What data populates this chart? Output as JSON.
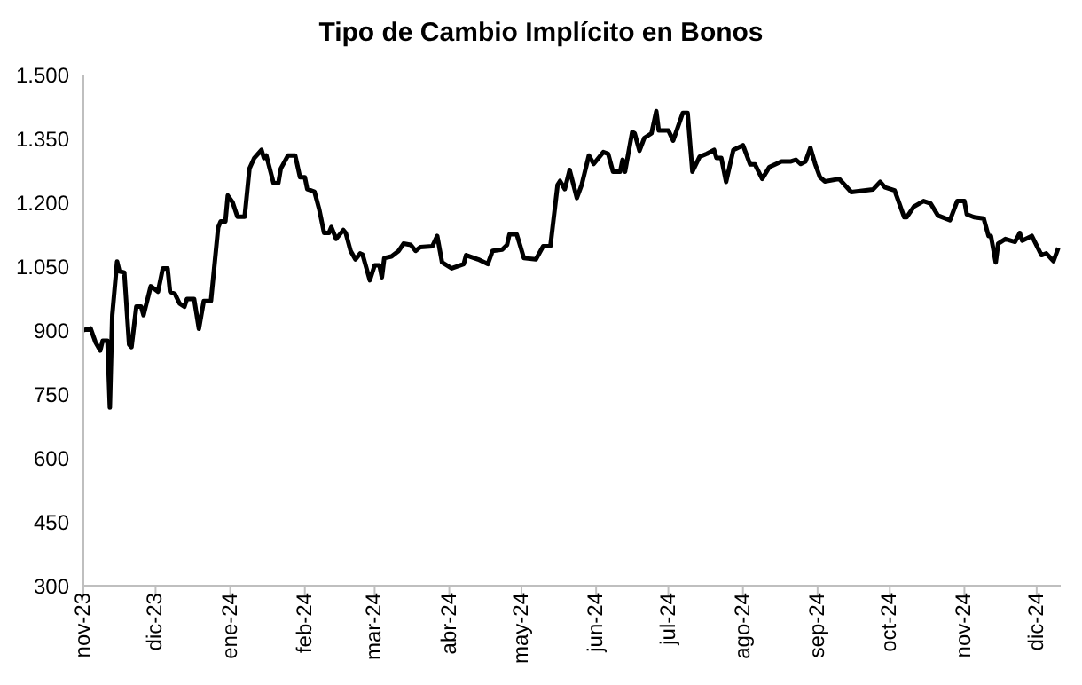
{
  "chart_data": {
    "type": "line",
    "title": "Tipo de Cambio Implícito en Bonos",
    "x": [
      "2023-11-01",
      "2023-11-04",
      "2023-11-06",
      "2023-11-08",
      "2023-11-09",
      "2023-11-11",
      "2023-11-12",
      "2023-11-13",
      "2023-11-15",
      "2023-11-16",
      "2023-11-18",
      "2023-11-20",
      "2023-11-21",
      "2023-11-23",
      "2023-11-25",
      "2023-11-26",
      "2023-11-29",
      "2023-12-02",
      "2023-12-04",
      "2023-12-06",
      "2023-12-07",
      "2023-12-09",
      "2023-12-11",
      "2023-12-13",
      "2023-12-14",
      "2023-12-17",
      "2023-12-19",
      "2023-12-21",
      "2023-12-24",
      "2023-12-27",
      "2023-12-28",
      "2023-12-30",
      "2023-12-31",
      "2024-01-02",
      "2024-01-04",
      "2024-01-07",
      "2024-01-09",
      "2024-01-11",
      "2024-01-14",
      "2024-01-15",
      "2024-01-16",
      "2024-01-19",
      "2024-01-21",
      "2024-01-22",
      "2024-01-25",
      "2024-01-28",
      "2024-01-30",
      "2024-02-01",
      "2024-02-02",
      "2024-02-05",
      "2024-02-07",
      "2024-02-09",
      "2024-02-11",
      "2024-02-12",
      "2024-02-14",
      "2024-02-17",
      "2024-02-18",
      "2024-02-20",
      "2024-02-22",
      "2024-02-24",
      "2024-02-25",
      "2024-02-28",
      "2024-03-01",
      "2024-03-03",
      "2024-03-04",
      "2024-03-05",
      "2024-03-08",
      "2024-03-11",
      "2024-03-13",
      "2024-03-16",
      "2024-03-18",
      "2024-03-20",
      "2024-03-25",
      "2024-03-27",
      "2024-03-29",
      "2024-04-02",
      "2024-04-07",
      "2024-04-08",
      "2024-04-13",
      "2024-04-17",
      "2024-04-19",
      "2024-04-23",
      "2024-04-25",
      "2024-04-26",
      "2024-04-29",
      "2024-04-30",
      "2024-05-02",
      "2024-05-07",
      "2024-05-10",
      "2024-05-13",
      "2024-05-16",
      "2024-05-17",
      "2024-05-19",
      "2024-05-21",
      "2024-05-24",
      "2024-05-26",
      "2024-05-29",
      "2024-05-31",
      "2024-06-04",
      "2024-06-06",
      "2024-06-08",
      "2024-06-11",
      "2024-06-12",
      "2024-06-13",
      "2024-06-16",
      "2024-06-17",
      "2024-06-19",
      "2024-06-21",
      "2024-06-24",
      "2024-06-26",
      "2024-06-27",
      "2024-07-01",
      "2024-07-03",
      "2024-07-07",
      "2024-07-09",
      "2024-07-11",
      "2024-07-14",
      "2024-07-17",
      "2024-07-20",
      "2024-07-21",
      "2024-07-23",
      "2024-07-25",
      "2024-07-28",
      "2024-08-01",
      "2024-08-04",
      "2024-08-06",
      "2024-08-09",
      "2024-08-12",
      "2024-08-17",
      "2024-08-21",
      "2024-08-23",
      "2024-08-25",
      "2024-08-27",
      "2024-08-29",
      "2024-08-31",
      "2024-09-02",
      "2024-09-04",
      "2024-09-10",
      "2024-09-15",
      "2024-09-21",
      "2024-09-24",
      "2024-09-27",
      "2024-09-29",
      "2024-10-03",
      "2024-10-07",
      "2024-10-08",
      "2024-10-11",
      "2024-10-15",
      "2024-10-18",
      "2024-10-21",
      "2024-10-26",
      "2024-10-29",
      "2024-11-01",
      "2024-11-02",
      "2024-11-05",
      "2024-11-09",
      "2024-11-11",
      "2024-11-12",
      "2024-11-14",
      "2024-11-15",
      "2024-11-18",
      "2024-11-22",
      "2024-11-24",
      "2024-11-25",
      "2024-11-29",
      "2024-12-03",
      "2024-12-05",
      "2024-12-08",
      "2024-12-10"
    ],
    "series": [
      {
        "color": "#000000",
        "values": [
          900,
          904,
          872,
          852,
          875,
          875,
          718,
          935,
          1061,
          1038,
          1035,
          866,
          860,
          955,
          955,
          935,
          1003,
          990,
          1045,
          1045,
          990,
          985,
          962,
          955,
          973,
          973,
          903,
          968,
          968,
          1141,
          1155,
          1155,
          1216,
          1200,
          1166,
          1166,
          1279,
          1304,
          1323,
          1304,
          1310,
          1245,
          1245,
          1279,
          1310,
          1310,
          1259,
          1259,
          1231,
          1225,
          1183,
          1128,
          1128,
          1142,
          1114,
          1135,
          1128,
          1086,
          1066,
          1080,
          1077,
          1017,
          1052,
          1052,
          1024,
          1069,
          1073,
          1086,
          1103,
          1100,
          1086,
          1095,
          1097,
          1121,
          1059,
          1045,
          1055,
          1076,
          1066,
          1055,
          1086,
          1089,
          1100,
          1125,
          1125,
          1107,
          1069,
          1066,
          1097,
          1097,
          1241,
          1250,
          1231,
          1276,
          1210,
          1241,
          1310,
          1290,
          1318,
          1314,
          1272,
          1272,
          1300,
          1272,
          1365,
          1362,
          1321,
          1351,
          1362,
          1414,
          1369,
          1369,
          1345,
          1410,
          1410,
          1272,
          1307,
          1314,
          1323,
          1304,
          1304,
          1248,
          1323,
          1334,
          1289,
          1289,
          1255,
          1283,
          1296,
          1296,
          1300,
          1290,
          1296,
          1328,
          1290,
          1259,
          1249,
          1255,
          1224,
          1228,
          1230,
          1248,
          1235,
          1228,
          1165,
          1165,
          1190,
          1203,
          1197,
          1169,
          1158,
          1203,
          1203,
          1172,
          1165,
          1162,
          1121,
          1121,
          1059,
          1103,
          1114,
          1107,
          1128,
          1110,
          1121,
          1076,
          1080,
          1062,
          1093
        ]
      }
    ],
    "xlim": [
      "2023-11-01",
      "2024-12-11"
    ],
    "xticks": [
      {
        "value": "2023-11-01",
        "label": "nov-23"
      },
      {
        "value": "2023-12-01",
        "label": "dic-23"
      },
      {
        "value": "2024-01-01",
        "label": "ene-24"
      },
      {
        "value": "2024-02-01",
        "label": "feb-24"
      },
      {
        "value": "2024-03-01",
        "label": "mar-24"
      },
      {
        "value": "2024-04-01",
        "label": "abr-24"
      },
      {
        "value": "2024-05-01",
        "label": "may-24"
      },
      {
        "value": "2024-06-01",
        "label": "jun-24"
      },
      {
        "value": "2024-07-01",
        "label": "jul-24"
      },
      {
        "value": "2024-08-01",
        "label": "ago-24"
      },
      {
        "value": "2024-09-01",
        "label": "sep-24"
      },
      {
        "value": "2024-10-01",
        "label": "oct-24"
      },
      {
        "value": "2024-11-01",
        "label": "nov-24"
      },
      {
        "value": "2024-12-01",
        "label": "dic-24"
      }
    ],
    "ylim": [
      300,
      1500
    ],
    "yticks": [
      300,
      450,
      600,
      750,
      900,
      {
        "value": 1050,
        "label": "1.050"
      },
      {
        "value": 1200,
        "label": "1.200"
      },
      {
        "value": 1350,
        "label": "1.350"
      },
      {
        "value": 1500,
        "label": "1.500"
      }
    ],
    "grid": false,
    "legend": false,
    "marker": "none",
    "line_style": "solid"
  }
}
